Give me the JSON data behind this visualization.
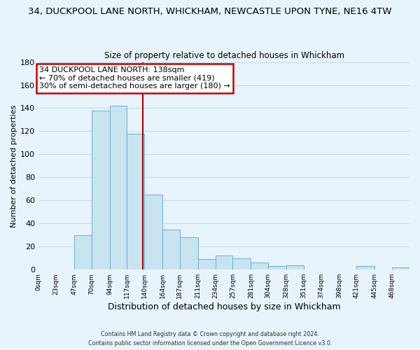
{
  "title": "34, DUCKPOOL LANE NORTH, WHICKHAM, NEWCASTLE UPON TYNE, NE16 4TW",
  "subtitle": "Size of property relative to detached houses in Whickham",
  "xlabel": "Distribution of detached houses by size in Whickham",
  "ylabel": "Number of detached properties",
  "footnote1": "Contains HM Land Registry data © Crown copyright and database right 2024.",
  "footnote2": "Contains public sector information licensed under the Open Government Licence v3.0.",
  "bin_edges": [
    0,
    23,
    47,
    70,
    94,
    117,
    140,
    164,
    187,
    211,
    234,
    257,
    281,
    304,
    328,
    351,
    374,
    398,
    421,
    445,
    468
  ],
  "bin_labels": [
    "0sqm",
    "23sqm",
    "47sqm",
    "70sqm",
    "94sqm",
    "117sqm",
    "140sqm",
    "164sqm",
    "187sqm",
    "211sqm",
    "234sqm",
    "257sqm",
    "281sqm",
    "304sqm",
    "328sqm",
    "351sqm",
    "374sqm",
    "398sqm",
    "421sqm",
    "445sqm",
    "468sqm"
  ],
  "counts": [
    0,
    0,
    30,
    138,
    142,
    118,
    65,
    35,
    28,
    9,
    12,
    10,
    6,
    3,
    4,
    0,
    0,
    0,
    3,
    0,
    2
  ],
  "bar_color": "#c8e4f0",
  "bar_edge_color": "#6baed6",
  "property_line_x": 138,
  "property_line_color": "#aa0000",
  "annotation_title": "34 DUCKPOOL LANE NORTH: 138sqm",
  "annotation_line1": "← 70% of detached houses are smaller (419)",
  "annotation_line2": "30% of semi-detached houses are larger (180) →",
  "annotation_box_color": "#ffffff",
  "annotation_box_edge_color": "#cc0000",
  "ylim": [
    0,
    180
  ],
  "yticks": [
    0,
    20,
    40,
    60,
    80,
    100,
    120,
    140,
    160,
    180
  ],
  "title_fontsize": 9.5,
  "subtitle_fontsize": 8.5,
  "background_color": "#e8f4fb"
}
